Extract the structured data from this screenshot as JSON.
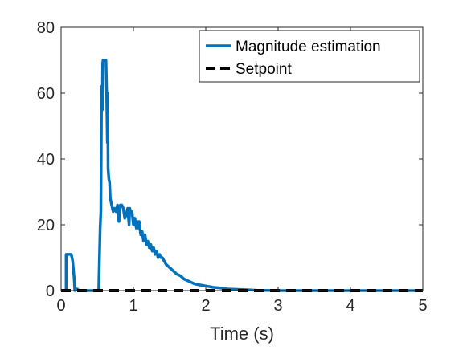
{
  "chart_data": {
    "type": "line",
    "xlabel": "Time (s)",
    "ylabel": "",
    "xlim": [
      0,
      5
    ],
    "ylim": [
      0,
      80
    ],
    "xticks": [
      "0",
      "1",
      "2",
      "3",
      "4",
      "5"
    ],
    "yticks": [
      "0",
      "20",
      "40",
      "60",
      "80"
    ],
    "grid": false,
    "legend_position": "top-right",
    "series": [
      {
        "name": "Magnitude estimation",
        "color": "#0072BD",
        "style": "solid",
        "x": [
          0,
          0.07,
          0.07,
          0.14,
          0.16,
          0.18,
          0.19,
          0.22,
          0.25,
          0.3,
          0.35,
          0.4,
          0.45,
          0.5,
          0.52,
          0.54,
          0.55,
          0.56,
          0.57,
          0.575,
          0.58,
          0.6,
          0.62,
          0.63,
          0.64,
          0.645,
          0.65,
          0.66,
          0.67,
          0.68,
          0.7,
          0.72,
          0.74,
          0.76,
          0.78,
          0.8,
          0.81,
          0.82,
          0.84,
          0.86,
          0.88,
          0.9,
          0.92,
          0.94,
          0.95,
          0.96,
          0.98,
          1.0,
          1.02,
          1.04,
          1.05,
          1.06,
          1.08,
          1.1,
          1.12,
          1.14,
          1.16,
          1.18,
          1.2,
          1.22,
          1.24,
          1.26,
          1.28,
          1.3,
          1.32,
          1.34,
          1.36,
          1.38,
          1.4,
          1.45,
          1.5,
          1.55,
          1.6,
          1.65,
          1.7,
          1.75,
          1.8,
          1.85,
          1.9,
          2.0,
          2.1,
          2.2,
          2.3,
          2.4,
          2.5,
          2.6,
          2.7,
          2.8,
          2.9,
          3.0,
          3.5,
          4.0,
          4.5,
          5.0
        ],
        "values": [
          0,
          0,
          11,
          11,
          9,
          4,
          0,
          0.5,
          0,
          0,
          0,
          0,
          0,
          0,
          0,
          19,
          24,
          62,
          55,
          69,
          70,
          70,
          70,
          60,
          45,
          60,
          37,
          34,
          33,
          28,
          26,
          24,
          25,
          24,
          26,
          21,
          25,
          26,
          26,
          25,
          22,
          23,
          25,
          20,
          25,
          24,
          24,
          20,
          22,
          19,
          21,
          19,
          21,
          17,
          18,
          15,
          17,
          14,
          15,
          13,
          14,
          12,
          13,
          11,
          12,
          10,
          11,
          10,
          10,
          8,
          7,
          6,
          5,
          4.5,
          3.5,
          3,
          2.5,
          2,
          1.8,
          1.4,
          1.0,
          0.8,
          0.5,
          0.4,
          0.3,
          0.2,
          0.1,
          0.05,
          0.02,
          0,
          0,
          0,
          0,
          0
        ]
      },
      {
        "name": "Setpoint",
        "color": "#000000",
        "style": "dashed",
        "x": [
          0,
          5
        ],
        "values": [
          0,
          0
        ]
      }
    ]
  }
}
